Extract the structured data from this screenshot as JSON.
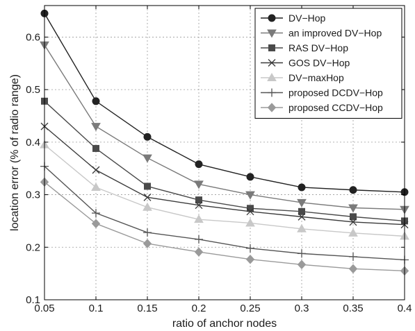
{
  "chart_data": {
    "type": "line",
    "title": "",
    "xlabel": "ratio of anchor nodes",
    "ylabel": "location error (% of radio range)",
    "x": [
      0.05,
      0.1,
      0.15,
      0.2,
      0.25,
      0.3,
      0.35,
      0.4
    ],
    "x_tick_labels": [
      "0.05",
      "0.1",
      "0.15",
      "0.2",
      "0.25",
      "0.3",
      "0.35",
      "0.4"
    ],
    "y_ticks": [
      0.1,
      0.2,
      0.3,
      0.4,
      0.5,
      0.6
    ],
    "y_tick_labels": [
      "0.1",
      "0.2",
      "0.3",
      "0.4",
      "0.5",
      "0.6"
    ],
    "xlim": [
      0.05,
      0.4
    ],
    "ylim": [
      0.1,
      0.66
    ],
    "grid": true,
    "legend_position": "top-right",
    "series": [
      {
        "name": "DV−Hop",
        "marker": "circle",
        "color": "#222222",
        "values": [
          0.645,
          0.478,
          0.41,
          0.358,
          0.334,
          0.314,
          0.309,
          0.305
        ]
      },
      {
        "name": "an improved DV−Hop",
        "marker": "triangle-down",
        "color": "#7a7a7a",
        "values": [
          0.585,
          0.43,
          0.37,
          0.32,
          0.3,
          0.285,
          0.275,
          0.272
        ]
      },
      {
        "name": "RAS DV−Hop",
        "marker": "square",
        "color": "#4a4a4a",
        "values": [
          0.478,
          0.388,
          0.316,
          0.29,
          0.274,
          0.268,
          0.258,
          0.25
        ]
      },
      {
        "name": "GOS DV−Hop",
        "marker": "x",
        "color": "#3a3a3a",
        "values": [
          0.43,
          0.347,
          0.295,
          0.28,
          0.268,
          0.258,
          0.248,
          0.243
        ]
      },
      {
        "name": "DV−maxHop",
        "marker": "triangle-up",
        "color": "#c8c8c8",
        "values": [
          0.395,
          0.314,
          0.276,
          0.253,
          0.246,
          0.235,
          0.227,
          0.221
        ]
      },
      {
        "name": "proposed DCDV−Hop",
        "marker": "plus",
        "color": "#555555",
        "values": [
          0.354,
          0.265,
          0.228,
          0.215,
          0.198,
          0.188,
          0.182,
          0.176
        ]
      },
      {
        "name": "proposed CCDV−Hop",
        "marker": "diamond",
        "color": "#9a9a9a",
        "values": [
          0.324,
          0.245,
          0.207,
          0.191,
          0.177,
          0.167,
          0.159,
          0.155
        ]
      }
    ]
  }
}
